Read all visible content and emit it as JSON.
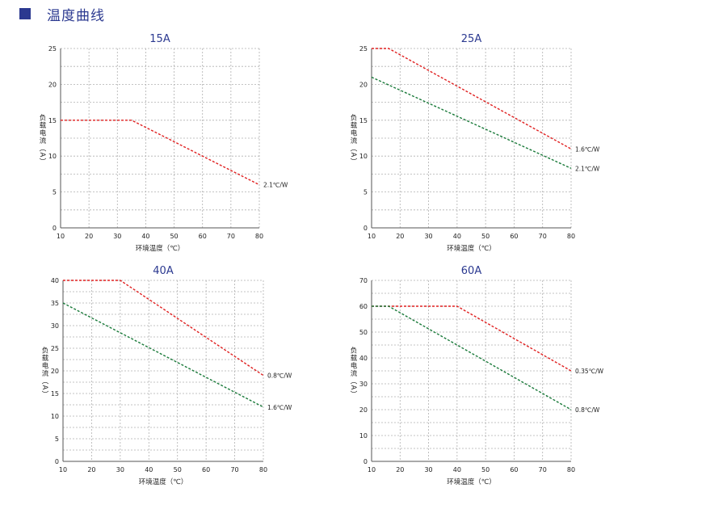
{
  "header": {
    "title": "温度曲线",
    "accent_color": "#2b3990"
  },
  "chart_data": [
    {
      "type": "line",
      "title": "15A",
      "xlabel": "环境温度（℃）",
      "ylabel": "负载电流（A）",
      "xlim": [
        10,
        80
      ],
      "ylim": [
        0,
        25
      ],
      "xticks": [
        10,
        20,
        30,
        40,
        50,
        60,
        70,
        80
      ],
      "yticks": [
        0,
        5,
        10,
        15,
        20,
        25
      ],
      "grid": true,
      "series": [
        {
          "name": "2.1℃/W",
          "color": "#e02020",
          "points": [
            [
              10,
              15
            ],
            [
              35,
              15
            ],
            [
              80,
              6
            ]
          ]
        }
      ]
    },
    {
      "type": "line",
      "title": "25A",
      "xlabel": "环境温度（℃）",
      "ylabel": "负载电流（A）",
      "xlim": [
        10,
        80
      ],
      "ylim": [
        0,
        25
      ],
      "xticks": [
        10,
        20,
        30,
        40,
        50,
        60,
        70,
        80
      ],
      "yticks": [
        0,
        5,
        10,
        15,
        20,
        25
      ],
      "grid": true,
      "series": [
        {
          "name": "1.6℃/W",
          "color": "#e02020",
          "points": [
            [
              10,
              25
            ],
            [
              16,
              25
            ],
            [
              80,
              11
            ]
          ]
        },
        {
          "name": "2.1℃/W",
          "color": "#1a7a3a",
          "points": [
            [
              10,
              21
            ],
            [
              80,
              8.3
            ]
          ]
        }
      ]
    },
    {
      "type": "line",
      "title": "40A",
      "xlabel": "环境温度（℃）",
      "ylabel": "负载电流（A）",
      "xlim": [
        10,
        80
      ],
      "ylim": [
        0,
        40
      ],
      "xticks": [
        10,
        20,
        30,
        40,
        50,
        60,
        70,
        80
      ],
      "yticks": [
        0,
        5,
        10,
        15,
        20,
        25,
        30,
        35,
        40
      ],
      "grid": true,
      "series": [
        {
          "name": "0.8℃/W",
          "color": "#e02020",
          "points": [
            [
              10,
              40
            ],
            [
              30,
              40
            ],
            [
              80,
              19
            ]
          ]
        },
        {
          "name": "1.6℃/W",
          "color": "#1a7a3a",
          "points": [
            [
              10,
              35
            ],
            [
              80,
              12
            ]
          ]
        }
      ]
    },
    {
      "type": "line",
      "title": "60A",
      "xlabel": "环境温度（℃）",
      "ylabel": "负载电流（A）",
      "xlim": [
        10,
        80
      ],
      "ylim": [
        0,
        70
      ],
      "xticks": [
        10,
        20,
        30,
        40,
        50,
        60,
        70,
        80
      ],
      "yticks": [
        0,
        10,
        20,
        30,
        40,
        50,
        60,
        70
      ],
      "grid": true,
      "series": [
        {
          "name": "0.35℃/W",
          "color": "#e02020",
          "points": [
            [
              10,
              60
            ],
            [
              40,
              60
            ],
            [
              80,
              35
            ]
          ]
        },
        {
          "name": "0.8℃/W",
          "color": "#1a7a3a",
          "points": [
            [
              10,
              60
            ],
            [
              16,
              60
            ],
            [
              80,
              20
            ]
          ]
        }
      ]
    }
  ]
}
